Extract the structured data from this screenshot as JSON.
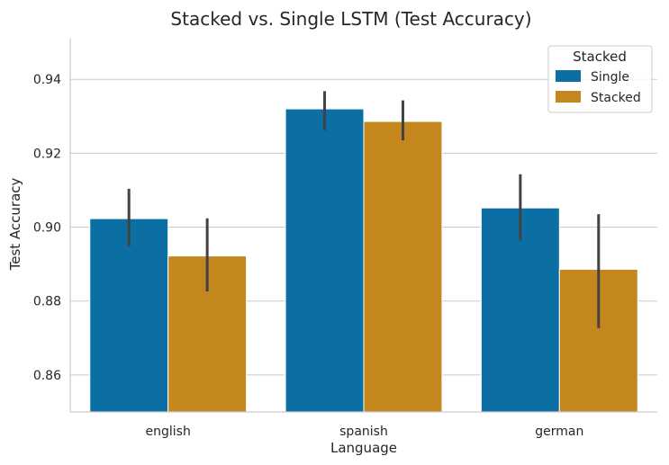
{
  "chart_data": {
    "type": "bar",
    "title": "Stacked vs. Single LSTM (Test Accuracy)",
    "xlabel": "Language",
    "ylabel": "Test Accuracy",
    "categories": [
      "english",
      "spanish",
      "german"
    ],
    "ylim": [
      0.85,
      0.951
    ],
    "yticks": [
      0.86,
      0.88,
      0.9,
      0.92,
      0.94
    ],
    "ytick_labels": [
      "0.86",
      "0.88",
      "0.90",
      "0.92",
      "0.94"
    ],
    "grid": "horizontal",
    "legend": {
      "title": "Stacked",
      "placement": "top-right"
    },
    "series": [
      {
        "name": "Single",
        "color": "#0b6fa4",
        "values": [
          0.9023,
          0.932,
          0.9052
        ],
        "ci_low": [
          0.8948,
          0.9262,
          0.8964
        ],
        "ci_high": [
          0.9104,
          0.9368,
          0.9143
        ]
      },
      {
        "name": "Stacked",
        "color": "#c4871e",
        "values": [
          0.8922,
          0.9286,
          0.8886
        ],
        "ci_low": [
          0.8826,
          0.9235,
          0.8727
        ],
        "ci_high": [
          0.9024,
          0.9343,
          0.9035
        ]
      }
    ]
  }
}
